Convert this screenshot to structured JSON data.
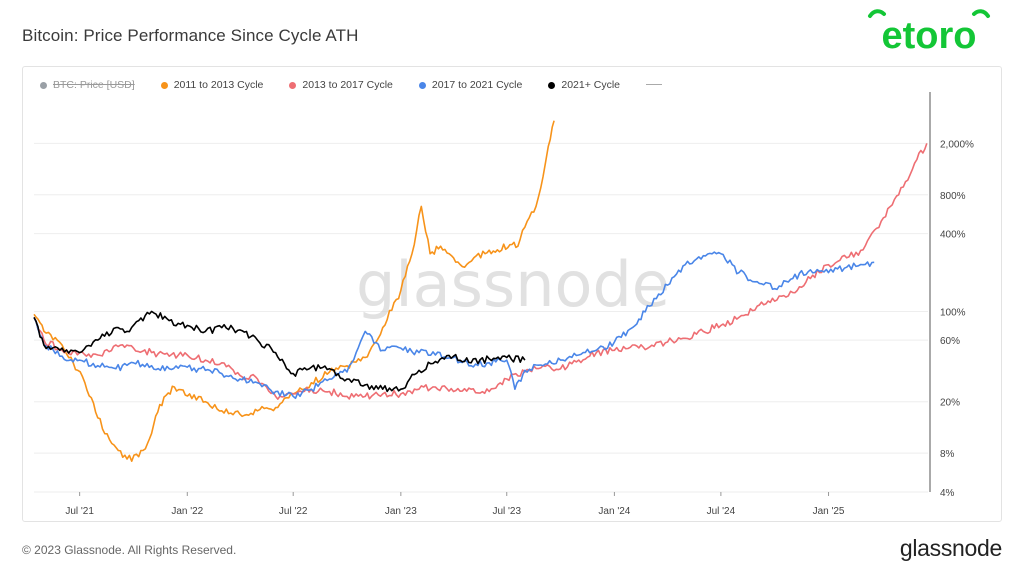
{
  "page": {
    "title": "Bitcoin: Price Performance Since Cycle ATH"
  },
  "brand": {
    "logo_text": "etoro",
    "logo_color": "#13C636"
  },
  "watermark": "glassnode",
  "footer": {
    "copyright": "© 2023 Glassnode. All Rights Reserved.",
    "brand": "glassnode"
  },
  "legend": [
    {
      "label": "BTC: Price [USD]",
      "color": "#9aa0a6",
      "hidden": true
    },
    {
      "label": "2011 to 2013 Cycle",
      "color": "#F7931A",
      "hidden": false
    },
    {
      "label": "2013 to 2017 Cycle",
      "color": "#EE6E73",
      "hidden": false
    },
    {
      "label": "2017 to 2021 Cycle",
      "color": "#4A86E8",
      "hidden": false
    },
    {
      "label": "2021+ Cycle",
      "color": "#000000",
      "hidden": false
    }
  ],
  "chart_data": {
    "type": "line",
    "y_scale": "log",
    "y_unit": "%",
    "x_range": [
      "2021-04-14",
      "2025-06-20"
    ],
    "y_range": [
      4,
      5000
    ],
    "x_ticks": [
      {
        "date": "2021-07-01",
        "label": "Jul '21"
      },
      {
        "date": "2022-01-01",
        "label": "Jan '22"
      },
      {
        "date": "2022-07-01",
        "label": "Jul '22"
      },
      {
        "date": "2023-01-01",
        "label": "Jan '23"
      },
      {
        "date": "2023-07-01",
        "label": "Jul '23"
      },
      {
        "date": "2024-01-01",
        "label": "Jan '24"
      },
      {
        "date": "2024-07-01",
        "label": "Jul '24"
      },
      {
        "date": "2025-01-01",
        "label": "Jan '25"
      }
    ],
    "y_ticks": [
      {
        "value": 4,
        "label": "4%"
      },
      {
        "value": 8,
        "label": "8%"
      },
      {
        "value": 20,
        "label": "20%"
      },
      {
        "value": 60,
        "label": "60%"
      },
      {
        "value": 100,
        "label": "100%"
      },
      {
        "value": 400,
        "label": "400%"
      },
      {
        "value": 800,
        "label": "800%"
      },
      {
        "value": 2000,
        "label": "2,000%"
      }
    ],
    "gridlines": true,
    "series": [
      {
        "name": "2011 to 2013 Cycle",
        "color": "#F7931A",
        "x": [
          "2021-04-14",
          "2021-05-01",
          "2021-06-01",
          "2021-06-20",
          "2021-07-10",
          "2021-08-01",
          "2021-08-25",
          "2021-09-20",
          "2021-10-10",
          "2021-10-25",
          "2021-11-15",
          "2021-12-10",
          "2022-01-05",
          "2022-02-01",
          "2022-03-01",
          "2022-04-01",
          "2022-05-01",
          "2022-06-01",
          "2022-07-01",
          "2022-08-01",
          "2022-09-01",
          "2022-10-01",
          "2022-11-01",
          "2022-12-01",
          "2023-01-01",
          "2023-01-20",
          "2023-02-05",
          "2023-02-20",
          "2023-03-10",
          "2023-04-01",
          "2023-04-20",
          "2023-05-10",
          "2023-05-25",
          "2023-06-15",
          "2023-07-10",
          "2023-07-20",
          "2023-08-01",
          "2023-08-20",
          "2023-09-01",
          "2023-09-10",
          "2023-09-20"
        ],
        "y": [
          95,
          70,
          55,
          40,
          28,
          15,
          9.5,
          7.2,
          7.5,
          9.5,
          19,
          26,
          23,
          20,
          17,
          16,
          17,
          18,
          23,
          28,
          34,
          38,
          44,
          75,
          145,
          280,
          650,
          280,
          320,
          260,
          220,
          270,
          280,
          300,
          330,
          320,
          450,
          650,
          1100,
          1900,
          3000
        ]
      },
      {
        "name": "2013 to 2017 Cycle",
        "color": "#EE6E73",
        "x": [
          "2021-04-14",
          "2021-05-01",
          "2021-06-01",
          "2021-07-01",
          "2021-08-01",
          "2021-09-01",
          "2021-10-01",
          "2021-11-01",
          "2021-12-01",
          "2022-01-01",
          "2022-02-01",
          "2022-03-01",
          "2022-04-01",
          "2022-05-01",
          "2022-06-01",
          "2022-07-01",
          "2022-08-01",
          "2022-09-01",
          "2022-10-01",
          "2022-11-01",
          "2022-12-01",
          "2023-01-01",
          "2023-02-01",
          "2023-03-01",
          "2023-04-01",
          "2023-05-01",
          "2023-06-01",
          "2023-07-01",
          "2023-08-01",
          "2023-09-01",
          "2023-10-01",
          "2023-11-01",
          "2023-12-01",
          "2024-01-01",
          "2024-02-01",
          "2024-03-01",
          "2024-04-01",
          "2024-05-01",
          "2024-06-01",
          "2024-07-01",
          "2024-08-01",
          "2024-09-01",
          "2024-10-01",
          "2024-11-01",
          "2024-12-01",
          "2025-01-01",
          "2025-02-01",
          "2025-03-01",
          "2025-04-01",
          "2025-05-01",
          "2025-06-01",
          "2025-06-18"
        ],
        "y": [
          90,
          60,
          50,
          48,
          46,
          55,
          52,
          48,
          45,
          46,
          42,
          40,
          32,
          30,
          22,
          23,
          25,
          24,
          22,
          22,
          23,
          23,
          25,
          26,
          24,
          25,
          24,
          30,
          34,
          38,
          36,
          42,
          48,
          50,
          55,
          53,
          58,
          62,
          70,
          78,
          90,
          110,
          120,
          140,
          180,
          230,
          260,
          300,
          500,
          800,
          1500,
          2000
        ]
      },
      {
        "name": "2017 to 2021 Cycle",
        "color": "#4A86E8",
        "x": [
          "2021-04-14",
          "2021-05-01",
          "2021-06-01",
          "2021-07-01",
          "2021-08-01",
          "2021-09-01",
          "2021-10-01",
          "2021-11-01",
          "2021-12-01",
          "2022-01-01",
          "2022-02-01",
          "2022-03-01",
          "2022-04-01",
          "2022-05-01",
          "2022-06-01",
          "2022-07-01",
          "2022-08-01",
          "2022-09-01",
          "2022-10-01",
          "2022-11-01",
          "2022-12-01",
          "2023-01-01",
          "2023-02-01",
          "2023-03-01",
          "2023-04-01",
          "2023-05-01",
          "2023-06-01",
          "2023-07-01",
          "2023-07-15",
          "2023-08-01",
          "2023-09-01",
          "2023-10-01",
          "2023-11-01",
          "2023-12-01",
          "2024-01-01",
          "2024-02-01",
          "2024-03-01",
          "2024-04-01",
          "2024-05-01",
          "2024-06-01",
          "2024-07-01",
          "2024-08-01",
          "2024-09-01",
          "2024-10-01",
          "2024-11-01",
          "2024-12-01",
          "2025-01-01",
          "2025-02-01",
          "2025-03-01",
          "2025-03-20"
        ],
        "y": [
          90,
          55,
          45,
          42,
          38,
          36,
          40,
          38,
          36,
          37,
          35,
          33,
          30,
          28,
          24,
          22,
          25,
          30,
          34,
          70,
          50,
          52,
          48,
          46,
          44,
          38,
          40,
          42,
          25,
          35,
          38,
          42,
          46,
          50,
          58,
          75,
          110,
          160,
          230,
          270,
          280,
          200,
          170,
          150,
          180,
          210,
          200,
          220,
          230,
          240
        ]
      },
      {
        "name": "2021+ Cycle",
        "color": "#000000",
        "x": [
          "2021-04-14",
          "2021-05-01",
          "2021-06-01",
          "2021-07-01",
          "2021-08-01",
          "2021-09-01",
          "2021-09-20",
          "2021-10-10",
          "2021-11-01",
          "2021-12-01",
          "2022-01-01",
          "2022-02-01",
          "2022-03-01",
          "2022-04-01",
          "2022-05-01",
          "2022-06-01",
          "2022-07-01",
          "2022-08-01",
          "2022-09-01",
          "2022-10-01",
          "2022-11-01",
          "2022-12-01",
          "2023-01-01",
          "2023-02-01",
          "2023-03-01",
          "2023-04-01",
          "2023-05-01",
          "2023-06-01",
          "2023-07-01",
          "2023-08-01"
        ],
        "y": [
          90,
          55,
          52,
          48,
          60,
          75,
          70,
          85,
          100,
          85,
          78,
          70,
          75,
          72,
          60,
          48,
          33,
          37,
          36,
          30,
          27,
          25,
          25,
          35,
          41,
          45,
          40,
          43,
          44,
          42
        ]
      }
    ]
  }
}
